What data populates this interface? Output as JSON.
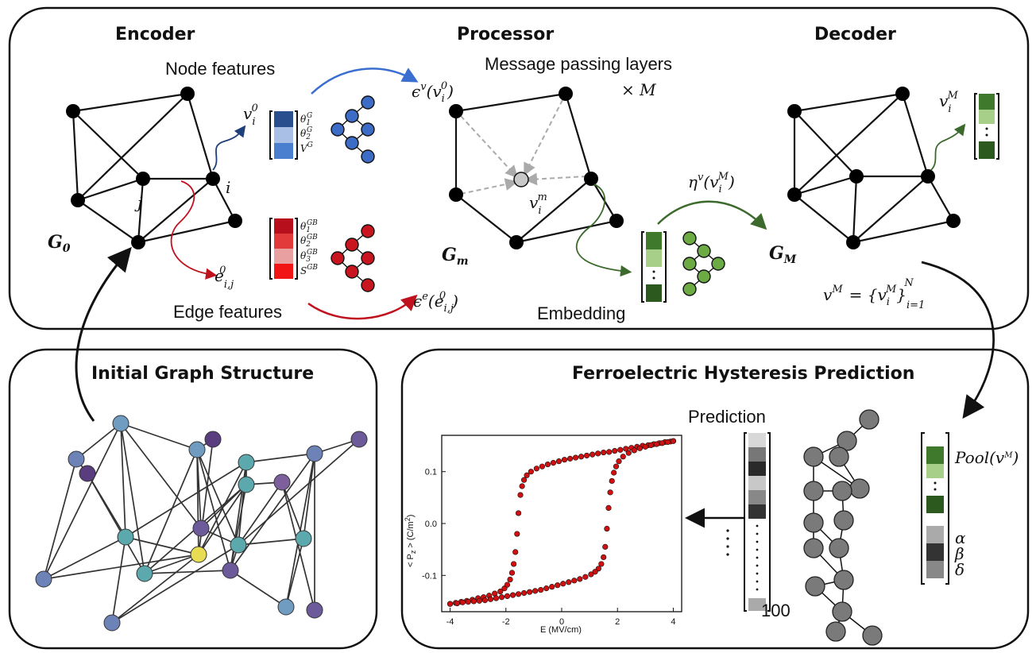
{
  "encoder": {
    "title": "Encoder",
    "node_features_label": "Node features",
    "edge_features_label": "Edge features",
    "graph_label": "G",
    "graph_sub": "0",
    "node_i": "i",
    "node_j": "j",
    "node_vec": "v",
    "node_vec_sub": "i",
    "node_vec_sup": "0",
    "node_feats": [
      "θ",
      "θ",
      "V"
    ],
    "node_feat_subs": [
      "1",
      "2",
      ""
    ],
    "node_feat_sups": [
      "G",
      "G",
      "G"
    ],
    "edge_vec": "e",
    "edge_vec_sub": "i,j",
    "edge_vec_sup": "0",
    "edge_feats": [
      "θ",
      "θ",
      "θ",
      "S"
    ],
    "edge_feat_subs": [
      "1",
      "2",
      "3",
      ""
    ],
    "edge_feat_sups": [
      "GB",
      "GB",
      "GB",
      "GB"
    ],
    "node_enc": "ϵ",
    "node_enc_sup": "v",
    "node_enc_arg": "(v",
    "node_enc_arg_sub": "i",
    "node_enc_arg_sup": "0",
    "node_enc_close": ")",
    "edge_enc": "ϵ",
    "edge_enc_sup": "e",
    "edge_enc_arg": "(e",
    "edge_enc_arg_sub": "i,j",
    "edge_enc_arg_sup": "0",
    "edge_enc_close": ")",
    "colors": {
      "node_dark": "#2a4f8f",
      "node_light": "#4a7fd0",
      "edge_red": "#c0111f"
    }
  },
  "processor": {
    "title": "Processor",
    "layers_label": "Message passing layers",
    "times": "× M",
    "graph_label": "G",
    "graph_sub": "m",
    "node_vec": "v",
    "node_vec_sub": "i",
    "node_vec_sup": "m",
    "embedding_label": "Embedding",
    "dec_fn": "η",
    "dec_fn_sup": "v",
    "dec_fn_arg": "(v",
    "dec_fn_arg_sub": "i",
    "dec_fn_arg_sup": "M",
    "dec_fn_close": ")"
  },
  "decoder": {
    "title": "Decoder",
    "graph_label": "G",
    "graph_sub": "M",
    "node_vec": "v",
    "node_vec_sub": "i",
    "node_vec_sup": "M",
    "set_lhs": "v",
    "set_lhs_sup": "M",
    "set_eq": "= {v",
    "set_sub": "i",
    "set_sup": "M",
    "set_close": "}",
    "set_range_lo": "i=1",
    "set_range_hi": "N"
  },
  "initial_graph": {
    "title": "Initial Graph Structure"
  },
  "prediction_panel": {
    "title": "Ferroelectric Hysteresis Prediction",
    "prediction_label": "Prediction",
    "vector_size": "100",
    "pool_label": "Pool(v",
    "pool_sup": "M",
    "pool_close": ")",
    "params": [
      "α",
      "β",
      "δ"
    ]
  },
  "chart_data": {
    "type": "scatter",
    "xlabel": "E (MV/cm)",
    "ylabel": "< P",
    "ylabel_sub": "z",
    "ylabel_rest": " > (C/m",
    "ylabel_sup": "2",
    "ylabel_end": ")",
    "xlim": [
      -4.3,
      4.3
    ],
    "ylim": [
      -0.17,
      0.17
    ],
    "xticks": [
      -4,
      -2,
      0,
      2,
      4
    ],
    "xtick_labels": [
      "-4",
      "-2",
      "0",
      "2",
      "4"
    ],
    "yticks": [
      -0.1,
      0.0,
      0.1
    ],
    "ytick_labels": [
      "-0.1",
      "0.0",
      "0.1"
    ],
    "series": [
      {
        "marker_color": "#d01010",
        "points_upper": [
          [
            -4.0,
            -0.155
          ],
          [
            -3.8,
            -0.153
          ],
          [
            -3.6,
            -0.151
          ],
          [
            -3.4,
            -0.149
          ],
          [
            -3.2,
            -0.147
          ],
          [
            -3.0,
            -0.144
          ],
          [
            -2.8,
            -0.142
          ],
          [
            -2.6,
            -0.139
          ],
          [
            -2.4,
            -0.135
          ],
          [
            -2.2,
            -0.131
          ],
          [
            -2.05,
            -0.125
          ],
          [
            -1.95,
            -0.118
          ],
          [
            -1.85,
            -0.108
          ],
          [
            -1.78,
            -0.095
          ],
          [
            -1.72,
            -0.078
          ],
          [
            -1.66,
            -0.055
          ],
          [
            -1.6,
            -0.02
          ],
          [
            -1.55,
            0.02
          ],
          [
            -1.48,
            0.055
          ],
          [
            -1.42,
            0.072
          ],
          [
            -1.35,
            0.084
          ],
          [
            -1.25,
            0.093
          ],
          [
            -1.1,
            0.1
          ],
          [
            -0.9,
            0.106
          ],
          [
            -0.7,
            0.11
          ],
          [
            -0.5,
            0.114
          ],
          [
            -0.3,
            0.117
          ],
          [
            -0.1,
            0.12
          ],
          [
            0.1,
            0.123
          ],
          [
            0.3,
            0.125
          ],
          [
            0.5,
            0.127
          ],
          [
            0.7,
            0.129
          ],
          [
            0.9,
            0.131
          ],
          [
            1.1,
            0.133
          ],
          [
            1.3,
            0.135
          ],
          [
            1.5,
            0.137
          ],
          [
            1.7,
            0.138
          ],
          [
            1.9,
            0.14
          ],
          [
            2.1,
            0.142
          ],
          [
            2.3,
            0.144
          ],
          [
            2.5,
            0.146
          ],
          [
            2.7,
            0.148
          ],
          [
            2.9,
            0.15
          ],
          [
            3.1,
            0.151
          ],
          [
            3.3,
            0.153
          ],
          [
            3.5,
            0.155
          ],
          [
            3.7,
            0.157
          ],
          [
            3.9,
            0.158
          ],
          [
            4.0,
            0.159
          ]
        ],
        "points_lower": [
          [
            4.0,
            0.159
          ],
          [
            3.8,
            0.157
          ],
          [
            3.6,
            0.155
          ],
          [
            3.4,
            0.153
          ],
          [
            3.2,
            0.151
          ],
          [
            3.0,
            0.148
          ],
          [
            2.8,
            0.145
          ],
          [
            2.6,
            0.141
          ],
          [
            2.4,
            0.136
          ],
          [
            2.2,
            0.129
          ],
          [
            2.05,
            0.12
          ],
          [
            1.95,
            0.11
          ],
          [
            1.87,
            0.098
          ],
          [
            1.8,
            0.082
          ],
          [
            1.74,
            0.06
          ],
          [
            1.68,
            0.03
          ],
          [
            1.62,
            -0.01
          ],
          [
            1.56,
            -0.045
          ],
          [
            1.5,
            -0.065
          ],
          [
            1.42,
            -0.078
          ],
          [
            1.32,
            -0.087
          ],
          [
            1.2,
            -0.093
          ],
          [
            1.05,
            -0.098
          ],
          [
            0.85,
            -0.103
          ],
          [
            0.65,
            -0.107
          ],
          [
            0.45,
            -0.11
          ],
          [
            0.25,
            -0.113
          ],
          [
            0.05,
            -0.116
          ],
          [
            -0.15,
            -0.119
          ],
          [
            -0.35,
            -0.122
          ],
          [
            -0.55,
            -0.125
          ],
          [
            -0.75,
            -0.128
          ],
          [
            -0.95,
            -0.13
          ],
          [
            -1.15,
            -0.132
          ],
          [
            -1.35,
            -0.134
          ],
          [
            -1.55,
            -0.136
          ],
          [
            -1.75,
            -0.138
          ],
          [
            -1.95,
            -0.14
          ],
          [
            -2.15,
            -0.142
          ],
          [
            -2.35,
            -0.144
          ],
          [
            -2.55,
            -0.146
          ],
          [
            -2.75,
            -0.148
          ],
          [
            -2.95,
            -0.149
          ],
          [
            -3.15,
            -0.15
          ],
          [
            -3.35,
            -0.151
          ],
          [
            -3.55,
            -0.152
          ],
          [
            -3.75,
            -0.154
          ],
          [
            -4.0,
            -0.155
          ]
        ]
      }
    ]
  }
}
